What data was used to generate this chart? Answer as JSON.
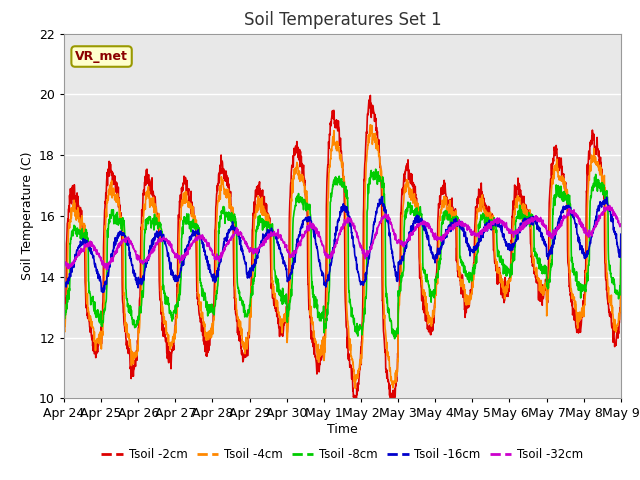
{
  "title": "Soil Temperatures Set 1",
  "xlabel": "Time",
  "ylabel": "Soil Temperature (C)",
  "ylim": [
    10,
    22
  ],
  "xlim": [
    0,
    15
  ],
  "bg_color": "#e8e8e8",
  "annotation_text": "VR_met",
  "annotation_bg": "#ffffcc",
  "annotation_border": "#999900",
  "x_tick_labels": [
    "Apr 24",
    "Apr 25",
    "Apr 26",
    "Apr 27",
    "Apr 28",
    "Apr 29",
    "Apr 30",
    "May 1",
    "May 2",
    "May 3",
    "May 4",
    "May 5",
    "May 6",
    "May 7",
    "May 8",
    "May 9"
  ],
  "series": {
    "Tsoil -2cm": {
      "color": "#dd0000",
      "lw": 1.2
    },
    "Tsoil -4cm": {
      "color": "#ff8800",
      "lw": 1.2
    },
    "Tsoil -8cm": {
      "color": "#00cc00",
      "lw": 1.2
    },
    "Tsoil -16cm": {
      "color": "#0000cc",
      "lw": 1.2
    },
    "Tsoil -32cm": {
      "color": "#cc00cc",
      "lw": 1.2
    }
  }
}
